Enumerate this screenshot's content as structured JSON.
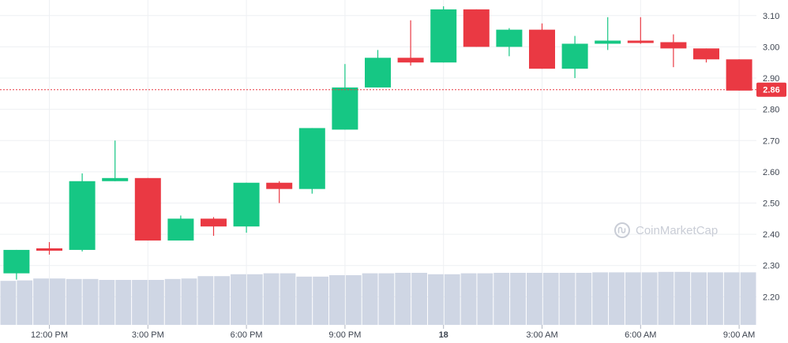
{
  "chart_data": {
    "type": "candlestick",
    "y_ticks": [
      "3.10",
      "3.00",
      "2.90",
      "2.80",
      "2.70",
      "2.60",
      "2.50",
      "2.40",
      "2.30",
      "2.20"
    ],
    "y_tick_values": [
      3.1,
      3.0,
      2.9,
      2.8,
      2.7,
      2.6,
      2.5,
      2.4,
      2.3,
      2.2
    ],
    "ylim": [
      2.11,
      3.15
    ],
    "x_ticks": [
      {
        "label": "12:00 PM",
        "index": 1
      },
      {
        "label": "3:00 PM",
        "index": 4
      },
      {
        "label": "6:00 PM",
        "index": 7
      },
      {
        "label": "9:00 PM",
        "index": 10
      },
      {
        "label": "18",
        "index": 13
      },
      {
        "label": "3:00 AM",
        "index": 16
      },
      {
        "label": "6:00 AM",
        "index": 19
      },
      {
        "label": "9:00 AM",
        "index": 22
      }
    ],
    "current_price": "2.86",
    "current_price_value": 2.863,
    "candles": [
      {
        "o": 2.275,
        "h": 2.35,
        "l": 2.255,
        "c": 2.35
      },
      {
        "o": 2.355,
        "h": 2.375,
        "l": 2.335,
        "c": 2.35
      },
      {
        "o": 2.35,
        "h": 2.595,
        "l": 2.345,
        "c": 2.57
      },
      {
        "o": 2.57,
        "h": 2.7,
        "l": 2.57,
        "c": 2.58
      },
      {
        "o": 2.58,
        "h": 2.58,
        "l": 2.38,
        "c": 2.38
      },
      {
        "o": 2.38,
        "h": 2.46,
        "l": 2.38,
        "c": 2.45
      },
      {
        "o": 2.45,
        "h": 2.455,
        "l": 2.395,
        "c": 2.425
      },
      {
        "o": 2.425,
        "h": 2.565,
        "l": 2.405,
        "c": 2.565
      },
      {
        "o": 2.565,
        "h": 2.57,
        "l": 2.5,
        "c": 2.545
      },
      {
        "o": 2.545,
        "h": 2.74,
        "l": 2.53,
        "c": 2.74
      },
      {
        "o": 2.735,
        "h": 2.945,
        "l": 2.735,
        "c": 2.87
      },
      {
        "o": 2.87,
        "h": 2.99,
        "l": 2.87,
        "c": 2.965
      },
      {
        "o": 2.965,
        "h": 3.085,
        "l": 2.94,
        "c": 2.95
      },
      {
        "o": 2.95,
        "h": 3.13,
        "l": 2.95,
        "c": 3.12
      },
      {
        "o": 3.12,
        "h": 3.12,
        "l": 3.0,
        "c": 3.0
      },
      {
        "o": 3.0,
        "h": 3.06,
        "l": 2.97,
        "c": 3.055
      },
      {
        "o": 3.055,
        "h": 3.075,
        "l": 2.93,
        "c": 2.93
      },
      {
        "o": 2.93,
        "h": 3.035,
        "l": 2.9,
        "c": 3.01
      },
      {
        "o": 3.01,
        "h": 3.095,
        "l": 2.99,
        "c": 3.02
      },
      {
        "o": 3.02,
        "h": 3.095,
        "l": 3.01,
        "c": 3.015
      },
      {
        "o": 3.015,
        "h": 3.04,
        "l": 2.935,
        "c": 2.995
      },
      {
        "o": 2.995,
        "h": 2.995,
        "l": 2.95,
        "c": 2.96
      },
      {
        "o": 2.96,
        "h": 2.96,
        "l": 2.86,
        "c": 2.86
      }
    ],
    "volume_relative": [
      0.93,
      0.94,
      0.98,
      0.98,
      0.97,
      0.97,
      0.95,
      0.95,
      0.95,
      0.95,
      0.97,
      0.98,
      1.03,
      1.03,
      1.07,
      1.07,
      1.09,
      1.09,
      1.02,
      1.02,
      1.05,
      1.05,
      1.09,
      1.09,
      1.1,
      1.1,
      1.07,
      1.07,
      1.09,
      1.09,
      1.1,
      1.1,
      1.1,
      1.1,
      1.1,
      1.1,
      1.11,
      1.11,
      1.11,
      1.11,
      1.12,
      1.12,
      1.11,
      1.11,
      1.11,
      1.11
    ],
    "grid": true,
    "colors": {
      "up": "#16c784",
      "down": "#ea3943",
      "grid": "#eef0f3",
      "volume": "#cfd6e4",
      "price_line": "#ea3943"
    }
  },
  "watermark": {
    "text": "CoinMarketCap",
    "icon": "coinmarketcap-logo-icon"
  }
}
